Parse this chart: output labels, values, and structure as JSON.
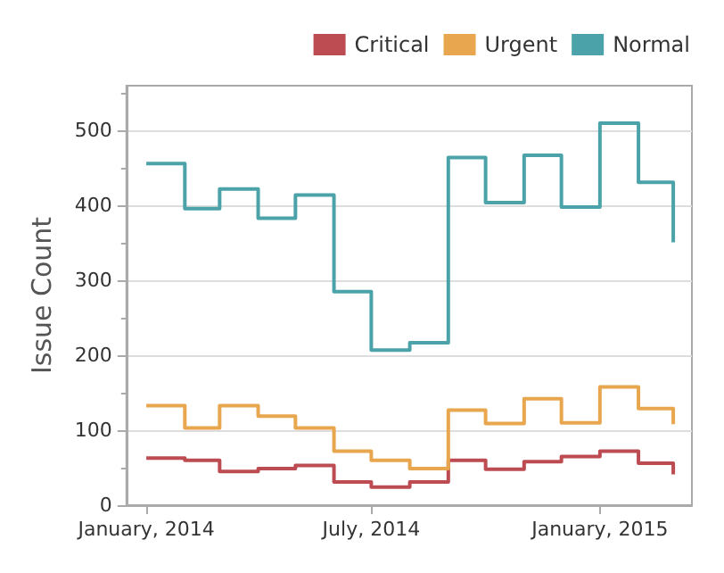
{
  "chart_data": {
    "type": "step",
    "ylabel": "Issue Count",
    "x": [
      "2014-01",
      "2014-02",
      "2014-03",
      "2014-04",
      "2014-05",
      "2014-06",
      "2014-07",
      "2014-08",
      "2014-09",
      "2014-10",
      "2014-11",
      "2014-12",
      "2015-01",
      "2015-02",
      "2015-03"
    ],
    "series": [
      {
        "name": "Critical",
        "color": "#bc4c52",
        "values": [
          63,
          60,
          45,
          49,
          53,
          31,
          24,
          31,
          60,
          48,
          58,
          65,
          72,
          56,
          41
        ]
      },
      {
        "name": "Urgent",
        "color": "#e8a64e",
        "values": [
          133,
          103,
          133,
          119,
          103,
          72,
          60,
          49,
          127,
          109,
          142,
          110,
          158,
          129,
          108
        ]
      },
      {
        "name": "Normal",
        "color": "#4ba3a9",
        "values": [
          456,
          396,
          422,
          383,
          414,
          285,
          207,
          217,
          464,
          404,
          467,
          398,
          510,
          431,
          351
        ]
      }
    ],
    "xlim": [
      "2013-12-16",
      "2015-03-16"
    ],
    "xticks": [
      {
        "value": "2014-01",
        "label": "January, 2014"
      },
      {
        "value": "2014-07",
        "label": "July, 2014"
      },
      {
        "value": "2015-01",
        "label": "January, 2015"
      }
    ],
    "ylim": [
      0,
      560
    ],
    "yticks": [
      0,
      100,
      200,
      300,
      400,
      500
    ],
    "grid": "y",
    "legend": "top right",
    "line_style": "solid",
    "marker": "none"
  }
}
